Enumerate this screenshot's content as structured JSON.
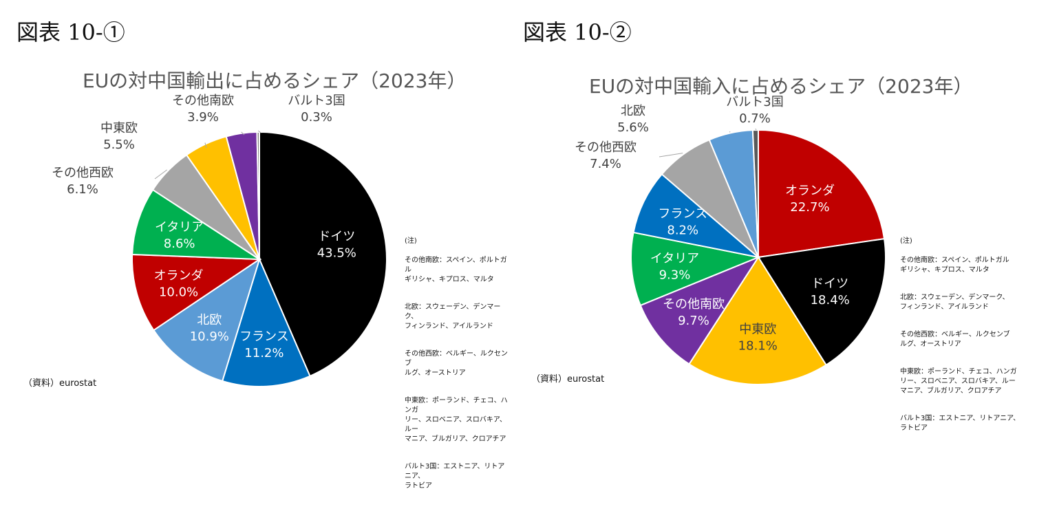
{
  "figures": [
    {
      "label": "図表 10-①"
    },
    {
      "label": "図表 10-②"
    }
  ],
  "chart_data": [
    {
      "type": "pie",
      "title": "EUの対中国輸出に占めるシェア（2023年）",
      "slices": [
        {
          "name": "ドイツ",
          "value": 43.5,
          "label": "43.5%",
          "color": "#000000",
          "label_pos": "inside",
          "text_color": "#ffffff"
        },
        {
          "name": "フランス",
          "value": 11.2,
          "label": "11.2%",
          "color": "#0070C0",
          "label_pos": "inside",
          "text_color": "#ffffff"
        },
        {
          "name": "北欧",
          "value": 10.9,
          "label": "10.9%",
          "color": "#5B9BD5",
          "label_pos": "inside",
          "text_color": "#ffffff"
        },
        {
          "name": "オランダ",
          "value": 10.0,
          "label": "10.0%",
          "color": "#C00000",
          "label_pos": "inside",
          "text_color": "#ffffff"
        },
        {
          "name": "イタリア",
          "value": 8.6,
          "label": "8.6%",
          "color": "#00B050",
          "label_pos": "inside",
          "text_color": "#ffffff"
        },
        {
          "name": "その他西欧",
          "value": 6.1,
          "label": "6.1%",
          "color": "#A5A5A5",
          "label_pos": "outside",
          "text_color": "#404040"
        },
        {
          "name": "中東欧",
          "value": 5.5,
          "label": "5.5%",
          "color": "#FFC000",
          "label_pos": "outside",
          "text_color": "#404040"
        },
        {
          "name": "その他南欧",
          "value": 3.9,
          "label": "3.9%",
          "color": "#7030A0",
          "label_pos": "outside",
          "text_color": "#404040"
        },
        {
          "name": "バルト3国",
          "value": 0.3,
          "label": "0.3%",
          "color": "#808080",
          "label_pos": "outside",
          "text_color": "#404040"
        }
      ]
    },
    {
      "type": "pie",
      "title": "EUの対中国輸入に占めるシェア（2023年）",
      "slices": [
        {
          "name": "オランダ",
          "value": 22.7,
          "label": "22.7%",
          "color": "#C00000",
          "label_pos": "inside",
          "text_color": "#ffffff"
        },
        {
          "name": "ドイツ",
          "value": 18.4,
          "label": "18.4%",
          "color": "#000000",
          "label_pos": "inside",
          "text_color": "#ffffff"
        },
        {
          "name": "中東欧",
          "value": 18.1,
          "label": "18.1%",
          "color": "#FFC000",
          "label_pos": "inside",
          "text_color": "#404040"
        },
        {
          "name": "その他南欧",
          "value": 9.7,
          "label": "9.7%",
          "color": "#7030A0",
          "label_pos": "inside",
          "text_color": "#ffffff"
        },
        {
          "name": "イタリア",
          "value": 9.3,
          "label": "9.3%",
          "color": "#00B050",
          "label_pos": "inside",
          "text_color": "#ffffff"
        },
        {
          "name": "フランス",
          "value": 8.2,
          "label": "8.2%",
          "color": "#0070C0",
          "label_pos": "inside",
          "text_color": "#ffffff"
        },
        {
          "name": "その他西欧",
          "value": 7.4,
          "label": "7.4%",
          "color": "#A5A5A5",
          "label_pos": "outside",
          "text_color": "#404040"
        },
        {
          "name": "北欧",
          "value": 5.6,
          "label": "5.6%",
          "color": "#5B9BD5",
          "label_pos": "outside",
          "text_color": "#404040"
        },
        {
          "name": "バルト3国",
          "value": 0.7,
          "label": "0.7%",
          "color": "#595959",
          "label_pos": "outside",
          "text_color": "#404040"
        }
      ]
    }
  ],
  "notes": {
    "heading": "(注)",
    "items": [
      "その他南欧：スペイン、ポルトガル\nギリシャ、キプロス、マルタ",
      "北欧：スウェーデン、デンマーク、\nフィンランド、アイルランド",
      "その他西欧：ベルギー、ルクセンブ\nルグ、オーストリア",
      "中東欧：ポーランド、チェコ、ハンガ\nリー、スロベニア、スロバキア、ルー\nマニア、ブルガリア、クロアチア",
      "バルト3国：エストニア、リトアニア、\nラトビア"
    ]
  },
  "source": "（資料）eurostat"
}
